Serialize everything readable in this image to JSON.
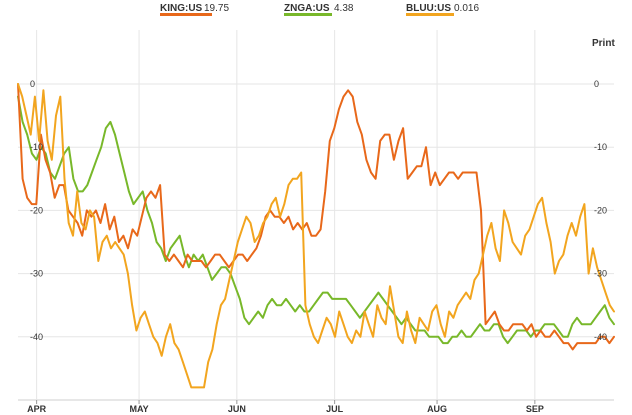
{
  "print_label": "Print",
  "legend": [
    {
      "ticker": "KING:US",
      "value": "19.75",
      "color": "#e8681a"
    },
    {
      "ticker": "ZNGA:US",
      "value": "4.38",
      "color": "#78b82a"
    },
    {
      "ticker": "BLUU:US",
      "value": "0.016",
      "color": "#f2a51f"
    }
  ],
  "chart_data": {
    "type": "line",
    "grid": true,
    "ylim": [
      -50,
      2
    ],
    "y_ticks": [
      0,
      -10,
      -20,
      -30,
      -40
    ],
    "x_ticks": [
      "APR",
      "MAY",
      "JUN",
      "JUL",
      "AUG",
      "SEP"
    ],
    "x_tick_positions": [
      4,
      26,
      47,
      68,
      90,
      111
    ],
    "x_range": [
      0,
      128
    ],
    "series": [
      {
        "name": "KING:US",
        "color": "#e8681a",
        "values": [
          0,
          -15,
          -18,
          -19,
          -19,
          -8,
          -12,
          -14,
          -18,
          -16,
          -16,
          -20,
          -21,
          -22,
          -24,
          -20,
          -21,
          -20,
          -22,
          -19,
          -23,
          -21,
          -25,
          -24,
          -26,
          -23,
          -24,
          -21,
          -18,
          -17,
          -18,
          -16,
          -27,
          -28,
          -27,
          -28,
          -29,
          -27,
          -28,
          -28,
          -28,
          -29,
          -28,
          -27,
          -27,
          -28,
          -29,
          -28,
          -27,
          -27,
          -28,
          -27,
          -26,
          -24,
          -21,
          -20,
          -21,
          -21,
          -22,
          -21,
          -23,
          -22,
          -23,
          -22,
          -24,
          -24,
          -23,
          -17,
          -9,
          -7,
          -4,
          -2,
          -1,
          -2,
          -6,
          -8,
          -12,
          -14,
          -15,
          -9,
          -8,
          -8,
          -12,
          -9,
          -7,
          -15,
          -14,
          -13,
          -13,
          -10,
          -16,
          -14,
          -16,
          -15,
          -14,
          -14,
          -15,
          -14,
          -14,
          -14,
          -14,
          -20,
          -38,
          -37,
          -36,
          -38,
          -39,
          -39,
          -38,
          -38,
          -38,
          -39,
          -38,
          -40,
          -39,
          -40,
          -40,
          -39,
          -40,
          -41,
          -41,
          -42,
          -41,
          -41,
          -41,
          -41,
          -41,
          -40,
          -40,
          -41,
          -40
        ]
      },
      {
        "name": "ZNGA:US",
        "color": "#78b82a",
        "values": [
          -2,
          -6,
          -8,
          -11,
          -12,
          -10,
          -11,
          -14,
          -15,
          -13,
          -11,
          -10,
          -15,
          -17,
          -17,
          -16,
          -14,
          -12,
          -10,
          -7,
          -6,
          -8,
          -11,
          -14,
          -17,
          -19,
          -18,
          -17,
          -20,
          -22,
          -25,
          -26,
          -28,
          -26,
          -25,
          -24,
          -27,
          -29,
          -27,
          -28,
          -27,
          -29,
          -31,
          -30,
          -29,
          -29,
          -30,
          -32,
          -34,
          -37,
          -38,
          -37,
          -36,
          -37,
          -35,
          -34,
          -35,
          -35,
          -34,
          -35,
          -36,
          -35,
          -36,
          -36,
          -35,
          -34,
          -33,
          -33,
          -34,
          -34,
          -34,
          -34,
          -35,
          -36,
          -37,
          -36,
          -35,
          -34,
          -33,
          -34,
          -35,
          -36,
          -37,
          -38,
          -37,
          -38,
          -39,
          -39,
          -39,
          -40,
          -40,
          -40,
          -41,
          -41,
          -40,
          -40,
          -39,
          -40,
          -40,
          -39,
          -38,
          -39,
          -39,
          -38,
          -38,
          -40,
          -41,
          -40,
          -39,
          -39,
          -39,
          -40,
          -39,
          -39,
          -38,
          -38,
          -38,
          -39,
          -40,
          -40,
          -38,
          -37,
          -38,
          -38,
          -38,
          -37,
          -36,
          -35,
          -37,
          -38
        ]
      },
      {
        "name": "BLUU:US",
        "color": "#f2a51f",
        "values": [
          0,
          -2,
          -5,
          -8,
          -2,
          -9,
          -1,
          -9,
          -12,
          -5,
          -2,
          -15,
          -22,
          -24,
          -17,
          -22,
          -23,
          -20,
          -21,
          -28,
          -25,
          -24,
          -26,
          -25,
          -26,
          -27,
          -30,
          -35,
          -39,
          -37,
          -36,
          -38,
          -40,
          -41,
          -43,
          -40,
          -38,
          -41,
          -42,
          -44,
          -46,
          -48,
          -48,
          -48,
          -48,
          -44,
          -42,
          -38,
          -35,
          -34,
          -31,
          -28,
          -25,
          -23,
          -21,
          -22,
          -25,
          -24,
          -22,
          -21,
          -19,
          -18,
          -21,
          -19,
          -16,
          -15,
          -15,
          -14,
          -35,
          -38,
          -40,
          -41,
          -39,
          -37,
          -38,
          -40,
          -36,
          -38,
          -40,
          -41,
          -39,
          -40,
          -36,
          -38,
          -40,
          -35,
          -37,
          -38,
          -32,
          -36,
          -40,
          -41,
          -36,
          -39,
          -41,
          -37,
          -38,
          -39,
          -36,
          -35,
          -38,
          -40,
          -36,
          -37,
          -35,
          -34,
          -33,
          -34,
          -31,
          -30,
          -27,
          -24,
          -22,
          -26,
          -28,
          -20,
          -22,
          -25,
          -26,
          -27,
          -24,
          -23,
          -21,
          -19,
          -18,
          -22,
          -25,
          -30,
          -28,
          -27,
          -24,
          -22,
          -24,
          -21,
          -19,
          -30,
          -26,
          -29,
          -31,
          -33,
          -35,
          -36
        ]
      }
    ]
  }
}
